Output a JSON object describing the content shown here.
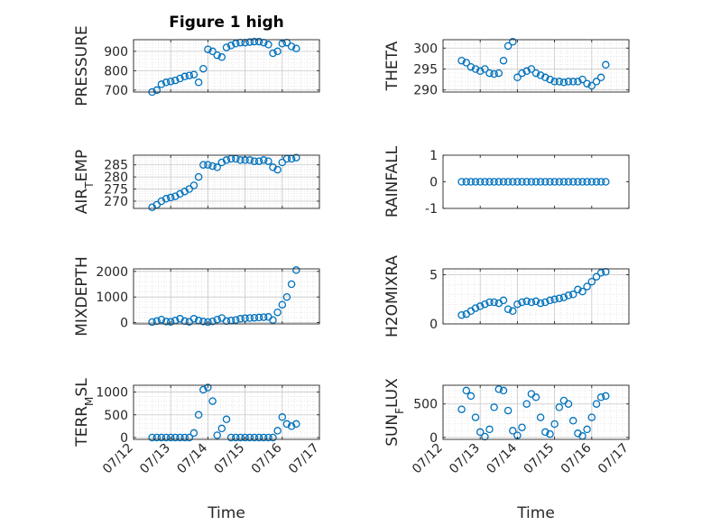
{
  "figure": {
    "title": "Figure 1 high",
    "xlabel": "Time"
  },
  "colors": {
    "marker": "#0072BD",
    "grid": "#d9d9d9",
    "axis": "#262626",
    "background": "#ffffff"
  },
  "chart_data": [
    {
      "type": "scatter",
      "ylabel": "PRESSURE",
      "xlim": [
        "07/12",
        "07/17"
      ],
      "ylim": [
        690,
        960
      ],
      "yticks": [
        700,
        800,
        900
      ],
      "ytick_labels": [
        "700",
        "800",
        "900"
      ],
      "grid": true,
      "x": [
        "07/12 12:00",
        "07/12 15:00",
        "07/12 18:00",
        "07/12 21:00",
        "07/13 00:00",
        "07/13 03:00",
        "07/13 06:00",
        "07/13 09:00",
        "07/13 12:00",
        "07/13 15:00",
        "07/13 18:00",
        "07/13 21:00",
        "07/14 00:00",
        "07/14 03:00",
        "07/14 06:00",
        "07/14 09:00",
        "07/14 12:00",
        "07/14 15:00",
        "07/14 18:00",
        "07/14 21:00",
        "07/15 00:00",
        "07/15 03:00",
        "07/15 06:00",
        "07/15 09:00",
        "07/15 12:00",
        "07/15 15:00",
        "07/15 18:00",
        "07/15 21:00",
        "07/16 00:00",
        "07/16 03:00",
        "07/16 06:00",
        "07/16 09:00"
      ],
      "y": [
        690,
        700,
        730,
        740,
        745,
        750,
        760,
        770,
        775,
        780,
        740,
        810,
        910,
        900,
        880,
        870,
        920,
        930,
        940,
        945,
        945,
        948,
        950,
        950,
        945,
        935,
        890,
        900,
        940,
        945,
        925,
        915
      ]
    },
    {
      "type": "scatter",
      "ylabel": "THETA",
      "xlim": [
        "07/12",
        "07/17"
      ],
      "ylim": [
        289.5,
        302
      ],
      "yticks": [
        290,
        295,
        300
      ],
      "ytick_labels": [
        "290",
        "295",
        "300"
      ],
      "grid": true,
      "x": [
        "07/12 12:00",
        "07/12 15:00",
        "07/12 18:00",
        "07/12 21:00",
        "07/13 00:00",
        "07/13 03:00",
        "07/13 06:00",
        "07/13 09:00",
        "07/13 12:00",
        "07/13 15:00",
        "07/13 18:00",
        "07/13 21:00",
        "07/14 00:00",
        "07/14 03:00",
        "07/14 06:00",
        "07/14 09:00",
        "07/14 12:00",
        "07/14 15:00",
        "07/14 18:00",
        "07/14 21:00",
        "07/15 00:00",
        "07/15 03:00",
        "07/15 06:00",
        "07/15 09:00",
        "07/15 12:00",
        "07/15 15:00",
        "07/15 18:00",
        "07/15 21:00",
        "07/16 00:00",
        "07/16 03:00",
        "07/16 06:00",
        "07/16 09:00"
      ],
      "y": [
        297,
        296.5,
        295.5,
        295,
        294.5,
        295,
        294,
        293.8,
        294,
        297,
        300.5,
        301.5,
        293,
        294,
        294.5,
        295,
        294,
        293.5,
        293,
        292.5,
        292,
        292,
        291.8,
        292,
        292,
        292,
        292.5,
        291.5,
        291,
        292,
        293,
        296
      ]
    },
    {
      "type": "scatter",
      "ylabel": "AIR_T_EMP",
      "xlim": [
        "07/12",
        "07/17"
      ],
      "ylim": [
        267,
        289
      ],
      "yticks": [
        270,
        275,
        280,
        285
      ],
      "ytick_labels": [
        "270",
        "275",
        "280",
        "285"
      ],
      "grid": true,
      "x": [
        "07/12 12:00",
        "07/12 15:00",
        "07/12 18:00",
        "07/12 21:00",
        "07/13 00:00",
        "07/13 03:00",
        "07/13 06:00",
        "07/13 09:00",
        "07/13 12:00",
        "07/13 15:00",
        "07/13 18:00",
        "07/13 21:00",
        "07/14 00:00",
        "07/14 03:00",
        "07/14 06:00",
        "07/14 09:00",
        "07/14 12:00",
        "07/14 15:00",
        "07/14 18:00",
        "07/14 21:00",
        "07/15 00:00",
        "07/15 03:00",
        "07/15 06:00",
        "07/15 09:00",
        "07/15 12:00",
        "07/15 15:00",
        "07/15 18:00",
        "07/15 21:00",
        "07/16 00:00",
        "07/16 03:00",
        "07/16 06:00",
        "07/16 09:00"
      ],
      "y": [
        267.5,
        268.5,
        270,
        271,
        271.5,
        272,
        273,
        274,
        275,
        276.5,
        280,
        285,
        285,
        284.5,
        284,
        286,
        287,
        287.5,
        287.5,
        287,
        287,
        287,
        286.5,
        286.5,
        287,
        286.5,
        284,
        283,
        286,
        287.5,
        287.5,
        288
      ]
    },
    {
      "type": "scatter",
      "ylabel": "RAINFALL",
      "xlim": [
        "07/12",
        "07/17"
      ],
      "ylim": [
        -1,
        1
      ],
      "yticks": [
        -1,
        0,
        1
      ],
      "ytick_labels": [
        "-1",
        "0",
        "1"
      ],
      "grid": false,
      "x": [
        "07/12 12:00",
        "07/12 15:00",
        "07/12 18:00",
        "07/12 21:00",
        "07/13 00:00",
        "07/13 03:00",
        "07/13 06:00",
        "07/13 09:00",
        "07/13 12:00",
        "07/13 15:00",
        "07/13 18:00",
        "07/13 21:00",
        "07/14 00:00",
        "07/14 03:00",
        "07/14 06:00",
        "07/14 09:00",
        "07/14 12:00",
        "07/14 15:00",
        "07/14 18:00",
        "07/14 21:00",
        "07/15 00:00",
        "07/15 03:00",
        "07/15 06:00",
        "07/15 09:00",
        "07/15 12:00",
        "07/15 15:00",
        "07/15 18:00",
        "07/15 21:00",
        "07/16 00:00",
        "07/16 03:00",
        "07/16 06:00",
        "07/16 09:00"
      ],
      "y": [
        0,
        0,
        0,
        0,
        0,
        0,
        0,
        0,
        0,
        0,
        0,
        0,
        0,
        0,
        0,
        0,
        0,
        0,
        0,
        0,
        0,
        0,
        0,
        0,
        0,
        0,
        0,
        0,
        0,
        0,
        0,
        0
      ]
    },
    {
      "type": "scatter",
      "ylabel": "MIXDEPTH",
      "xlim": [
        "07/12",
        "07/17"
      ],
      "ylim": [
        -50,
        2100
      ],
      "yticks": [
        0,
        1000,
        2000
      ],
      "ytick_labels": [
        "0",
        "1000",
        "2000"
      ],
      "grid": true,
      "x": [
        "07/12 12:00",
        "07/12 15:00",
        "07/12 18:00",
        "07/12 21:00",
        "07/13 00:00",
        "07/13 03:00",
        "07/13 06:00",
        "07/13 09:00",
        "07/13 12:00",
        "07/13 15:00",
        "07/13 18:00",
        "07/13 21:00",
        "07/14 00:00",
        "07/14 03:00",
        "07/14 06:00",
        "07/14 09:00",
        "07/14 12:00",
        "07/14 15:00",
        "07/14 18:00",
        "07/14 21:00",
        "07/15 00:00",
        "07/15 03:00",
        "07/15 06:00",
        "07/15 09:00",
        "07/15 12:00",
        "07/15 15:00",
        "07/15 18:00",
        "07/15 21:00",
        "07/16 00:00",
        "07/16 03:00",
        "07/16 06:00",
        "07/16 09:00"
      ],
      "y": [
        20,
        60,
        120,
        40,
        30,
        80,
        150,
        60,
        30,
        150,
        80,
        40,
        20,
        50,
        120,
        180,
        60,
        80,
        100,
        150,
        170,
        180,
        190,
        200,
        210,
        220,
        100,
        400,
        700,
        1000,
        1500,
        2050
      ]
    },
    {
      "type": "scatter",
      "ylabel": "H2OMIXRA",
      "xlim": [
        "07/12",
        "07/17"
      ],
      "ylim": [
        0,
        5.6
      ],
      "yticks": [
        0,
        5
      ],
      "ytick_labels": [
        "0",
        "5"
      ],
      "grid": true,
      "x": [
        "07/12 12:00",
        "07/12 15:00",
        "07/12 18:00",
        "07/12 21:00",
        "07/13 00:00",
        "07/13 03:00",
        "07/13 06:00",
        "07/13 09:00",
        "07/13 12:00",
        "07/13 15:00",
        "07/13 18:00",
        "07/13 21:00",
        "07/14 00:00",
        "07/14 03:00",
        "07/14 06:00",
        "07/14 09:00",
        "07/14 12:00",
        "07/14 15:00",
        "07/14 18:00",
        "07/14 21:00",
        "07/15 00:00",
        "07/15 03:00",
        "07/15 06:00",
        "07/15 09:00",
        "07/15 12:00",
        "07/15 15:00",
        "07/15 18:00",
        "07/15 21:00",
        "07/16 00:00",
        "07/16 03:00",
        "07/16 06:00",
        "07/16 09:00"
      ],
      "y": [
        0.9,
        1.0,
        1.3,
        1.6,
        1.8,
        2.0,
        2.2,
        2.2,
        2.1,
        2.4,
        1.5,
        1.3,
        2.0,
        2.2,
        2.3,
        2.2,
        2.3,
        2.1,
        2.2,
        2.4,
        2.5,
        2.6,
        2.7,
        2.9,
        3.0,
        3.5,
        3.3,
        3.8,
        4.3,
        4.8,
        5.2,
        5.3
      ]
    },
    {
      "type": "scatter",
      "ylabel": "TERR_M_SL",
      "xlim": [
        "07/12",
        "07/17"
      ],
      "ylim": [
        -40,
        1150
      ],
      "yticks": [
        0,
        500,
        1000
      ],
      "ytick_labels": [
        "0",
        "500",
        "1000"
      ],
      "grid": true,
      "x": [
        "07/12 12:00",
        "07/12 15:00",
        "07/12 18:00",
        "07/12 21:00",
        "07/13 00:00",
        "07/13 03:00",
        "07/13 06:00",
        "07/13 09:00",
        "07/13 12:00",
        "07/13 15:00",
        "07/13 18:00",
        "07/13 21:00",
        "07/14 00:00",
        "07/14 03:00",
        "07/14 06:00",
        "07/14 09:00",
        "07/14 12:00",
        "07/14 15:00",
        "07/14 18:00",
        "07/14 21:00",
        "07/15 00:00",
        "07/15 03:00",
        "07/15 06:00",
        "07/15 09:00",
        "07/15 12:00",
        "07/15 15:00",
        "07/15 18:00",
        "07/15 21:00",
        "07/16 00:00",
        "07/16 03:00",
        "07/16 06:00",
        "07/16 09:00"
      ],
      "y": [
        0,
        0,
        0,
        0,
        0,
        0,
        0,
        0,
        0,
        100,
        500,
        1050,
        1100,
        800,
        50,
        200,
        400,
        0,
        0,
        0,
        0,
        0,
        0,
        0,
        0,
        0,
        0,
        150,
        450,
        300,
        250,
        300
      ]
    },
    {
      "type": "scatter",
      "ylabel": "SUN_F_LUX",
      "xlim": [
        "07/12",
        "07/17"
      ],
      "ylim": [
        -30,
        780
      ],
      "yticks": [
        0,
        500
      ],
      "ytick_labels": [
        "0",
        "500"
      ],
      "grid": true,
      "x": [
        "07/12 12:00",
        "07/12 15:00",
        "07/12 18:00",
        "07/12 21:00",
        "07/13 00:00",
        "07/13 03:00",
        "07/13 06:00",
        "07/13 09:00",
        "07/13 12:00",
        "07/13 15:00",
        "07/13 18:00",
        "07/13 21:00",
        "07/14 00:00",
        "07/14 03:00",
        "07/14 06:00",
        "07/14 09:00",
        "07/14 12:00",
        "07/14 15:00",
        "07/14 18:00",
        "07/14 21:00",
        "07/15 00:00",
        "07/15 03:00",
        "07/15 06:00",
        "07/15 09:00",
        "07/15 12:00",
        "07/15 15:00",
        "07/15 18:00",
        "07/15 21:00",
        "07/16 00:00",
        "07/16 03:00",
        "07/16 06:00",
        "07/16 09:00"
      ],
      "y": [
        420,
        700,
        620,
        300,
        80,
        10,
        120,
        450,
        720,
        700,
        400,
        100,
        30,
        150,
        500,
        650,
        600,
        300,
        80,
        50,
        200,
        450,
        550,
        500,
        250,
        60,
        20,
        120,
        300,
        500,
        600,
        620
      ]
    }
  ]
}
